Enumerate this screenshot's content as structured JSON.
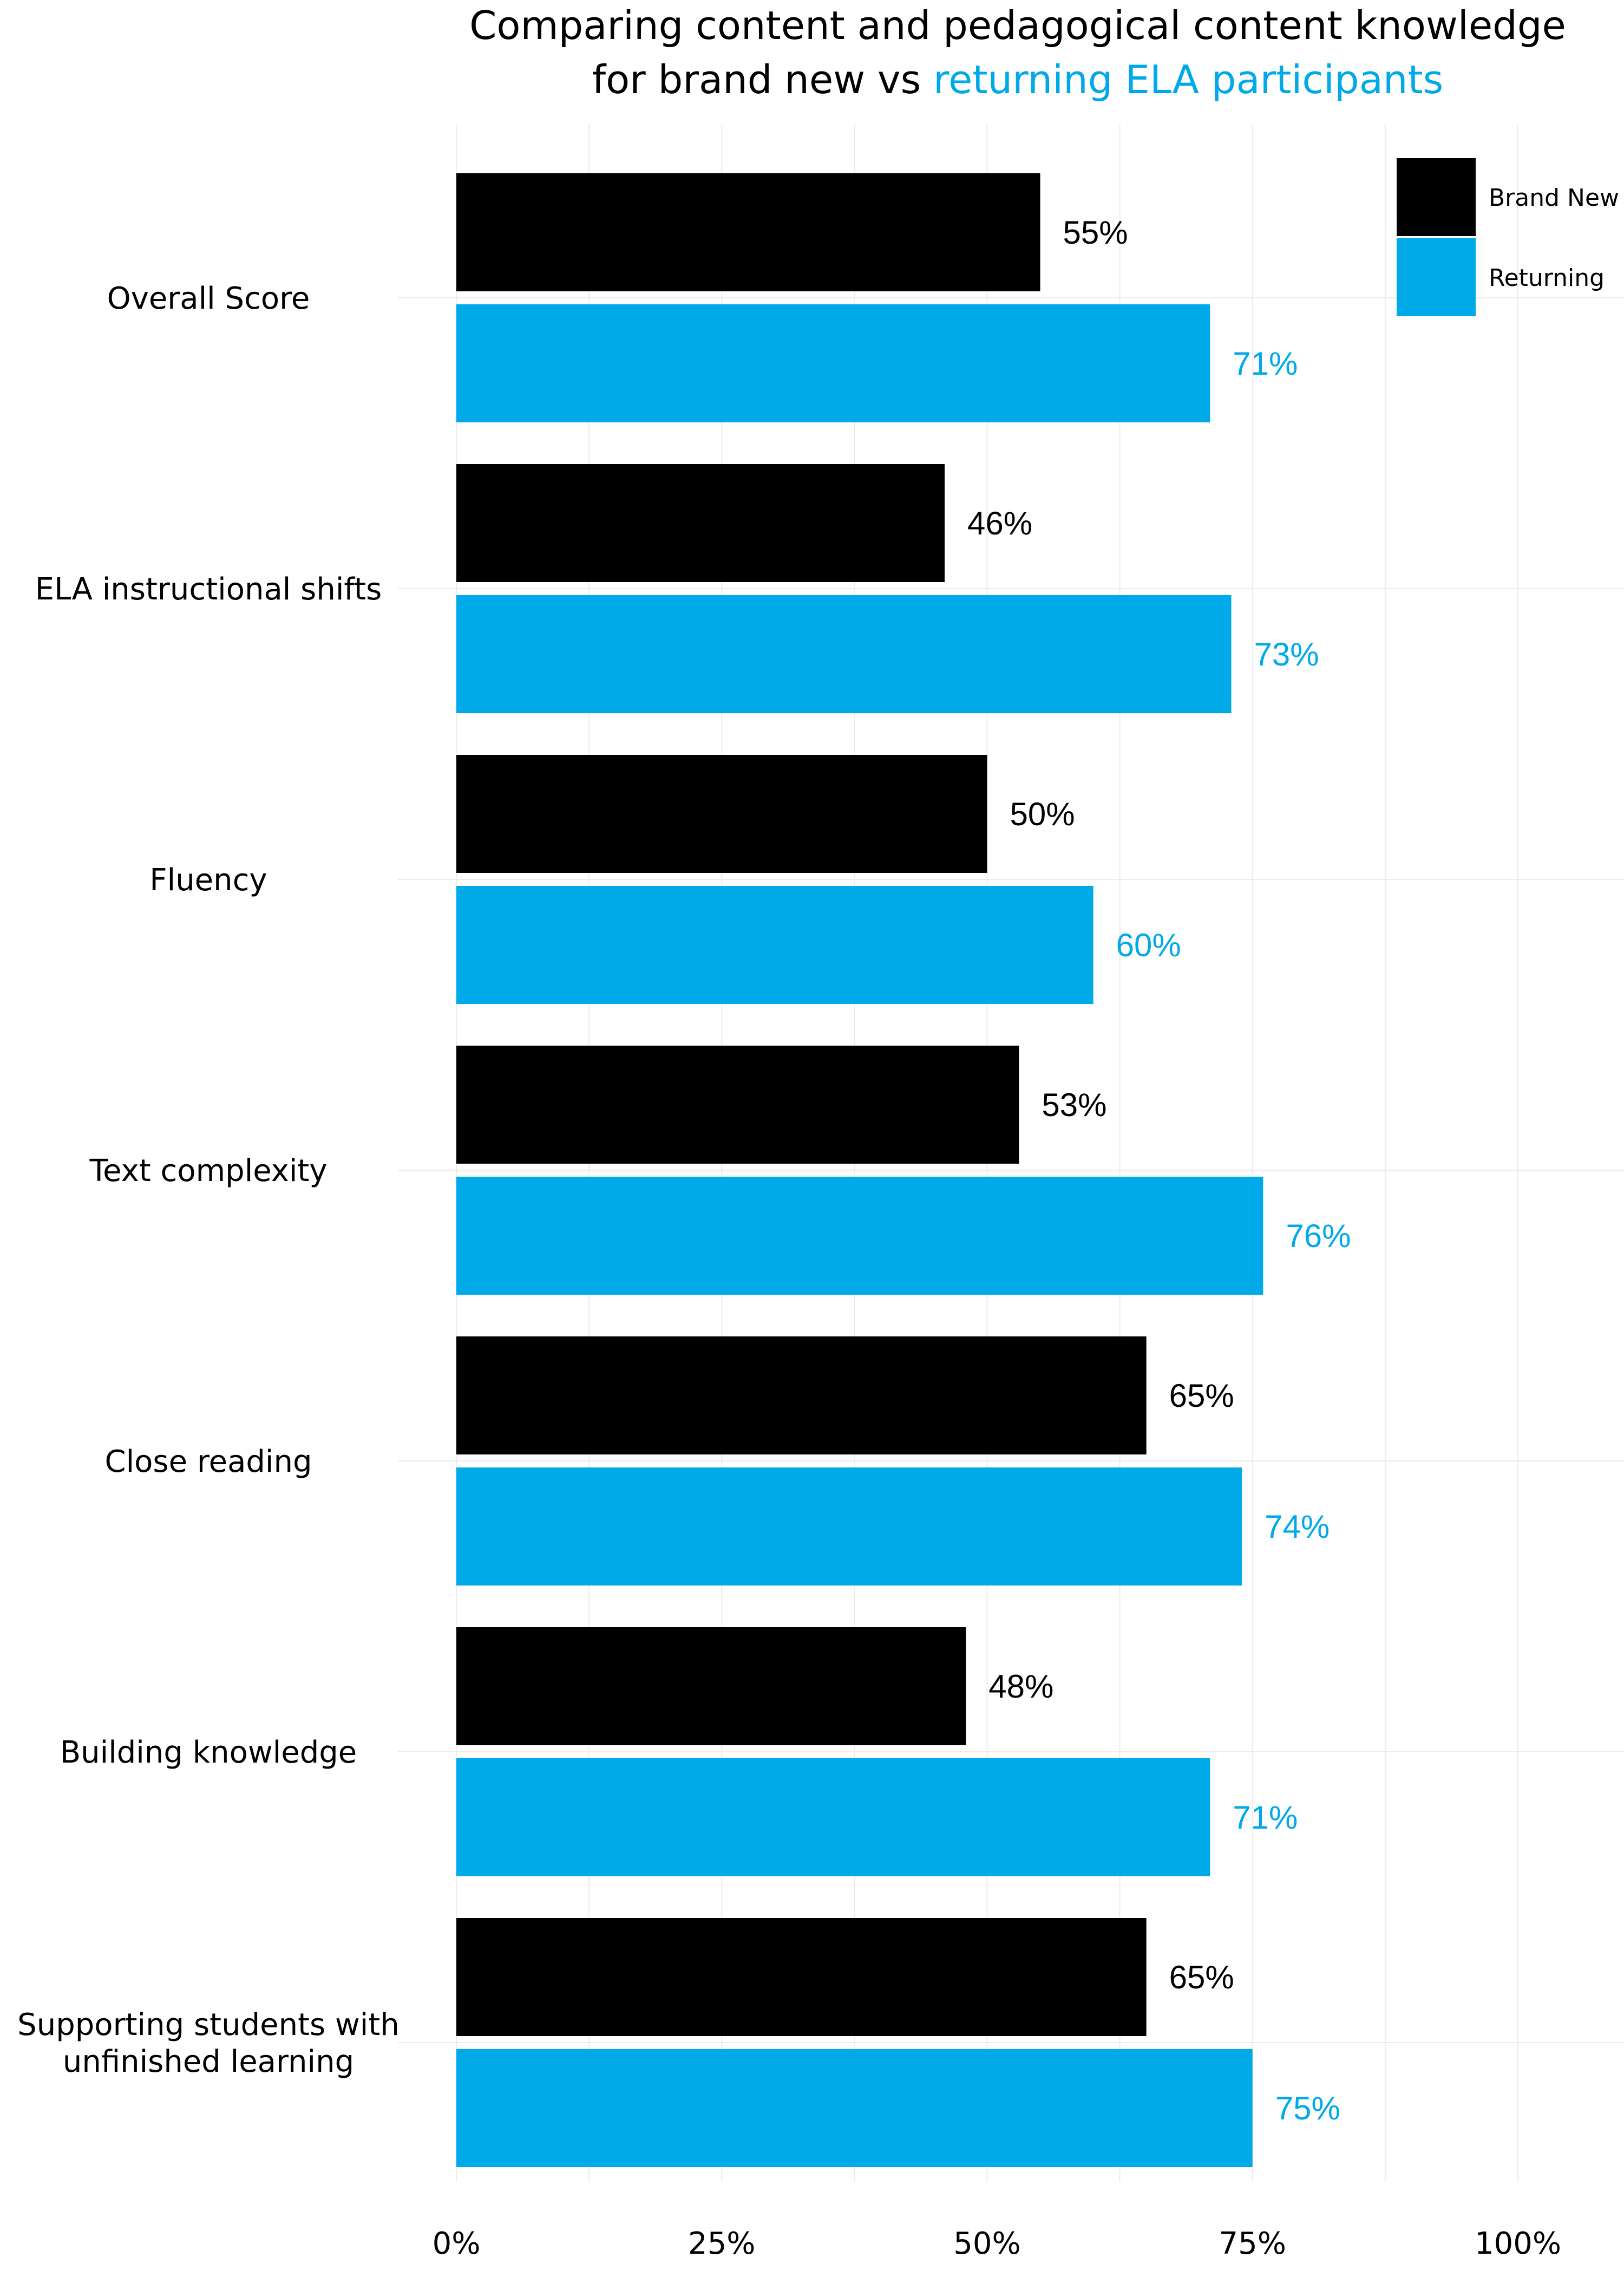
{
  "chart_data": {
    "type": "bar",
    "orientation": "horizontal",
    "title": {
      "line1": "Comparing content and pedagogical content knowledge",
      "line2_prefix": "for brand new vs ",
      "line2_highlight": "returning ELA participants"
    },
    "categories": [
      [
        "Overall Score"
      ],
      [
        "ELA instructional shifts"
      ],
      [
        "Fluency"
      ],
      [
        "Text complexity"
      ],
      [
        "Close reading"
      ],
      [
        "Building knowledge"
      ],
      [
        "Supporting students with",
        "unfinished learning"
      ]
    ],
    "series": [
      {
        "name": "Brand New",
        "color": "#000000",
        "values": [
          55,
          46,
          50,
          53,
          65,
          48,
          65
        ],
        "labels": [
          "55%",
          "46%",
          "50%",
          "53%",
          "65%",
          "48%",
          "65%"
        ]
      },
      {
        "name": "Returning",
        "color": "#00A9E8",
        "values": [
          71,
          73,
          60,
          76,
          74,
          71,
          75
        ],
        "labels": [
          "71%",
          "73%",
          "60%",
          "76%",
          "74%",
          "71%",
          "75%"
        ]
      }
    ],
    "xlim": [
      0,
      100
    ],
    "xticks": [
      0,
      25,
      50,
      75,
      100
    ],
    "xtick_labels": [
      "0%",
      "25%",
      "50%",
      "75%",
      "100%"
    ],
    "xlabel": "",
    "ylabel": "",
    "grid": true,
    "legend_position": "top-right",
    "highlight_color": "#00A9E8"
  }
}
